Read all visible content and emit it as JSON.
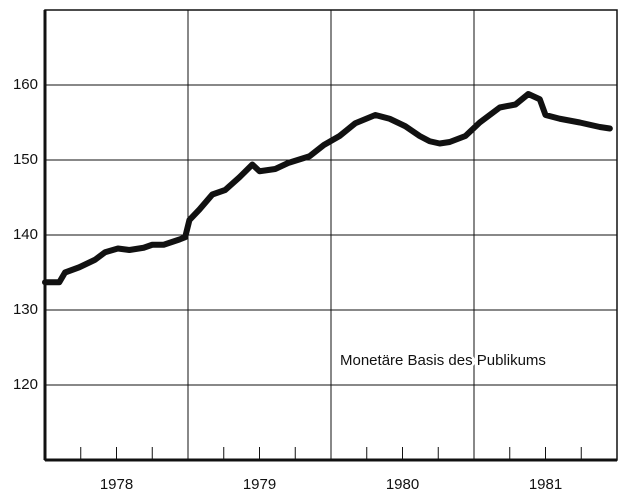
{
  "chart_data": {
    "type": "line",
    "annotation": "Monetäre Basis des Publikums",
    "x": [
      1978.0,
      1978.1,
      1978.14,
      1978.24,
      1978.35,
      1978.42,
      1978.51,
      1978.59,
      1978.69,
      1978.75,
      1978.83,
      1978.94,
      1978.98,
      1979.01,
      1979.08,
      1979.17,
      1979.26,
      1979.36,
      1979.45,
      1979.5,
      1979.61,
      1979.7,
      1979.85,
      1979.95,
      1980.06,
      1980.17,
      1980.31,
      1980.41,
      1980.52,
      1980.62,
      1980.69,
      1980.76,
      1980.83,
      1980.94,
      1981.04,
      1981.18,
      1981.29,
      1981.38,
      1981.46,
      1981.5,
      1981.6,
      1981.74,
      1981.88,
      1981.95
    ],
    "series": [
      {
        "color": "#111111",
        "values": [
          133.7,
          133.7,
          135.0,
          135.7,
          136.7,
          137.7,
          138.2,
          138.0,
          138.3,
          138.7,
          138.7,
          139.4,
          139.7,
          142.0,
          143.4,
          145.4,
          146.0,
          147.7,
          149.4,
          148.5,
          148.8,
          149.6,
          150.5,
          152.0,
          153.2,
          154.9,
          156.0,
          155.5,
          154.5,
          153.2,
          152.5,
          152.2,
          152.4,
          153.2,
          155.0,
          157.0,
          157.4,
          158.8,
          158.1,
          156.0,
          155.5,
          155.0,
          154.4,
          154.2
        ]
      }
    ],
    "xlim": [
      1978,
      1982
    ],
    "xticks": [
      {
        "value": 1978.5,
        "label": "1978"
      },
      {
        "value": 1979.5,
        "label": "1979"
      },
      {
        "value": 1980.5,
        "label": "1980"
      },
      {
        "value": 1981.5,
        "label": "1981"
      }
    ],
    "xgrid": [
      1979,
      1980,
      1981
    ],
    "xminor": [
      1978.25,
      1978.5,
      1978.75,
      1979.25,
      1979.5,
      1979.75,
      1980.25,
      1980.5,
      1980.75,
      1981.25,
      1981.5,
      1981.75
    ],
    "ylim": [
      110,
      170
    ],
    "yticks": [
      120,
      130,
      140,
      150,
      160
    ],
    "grid": true
  }
}
